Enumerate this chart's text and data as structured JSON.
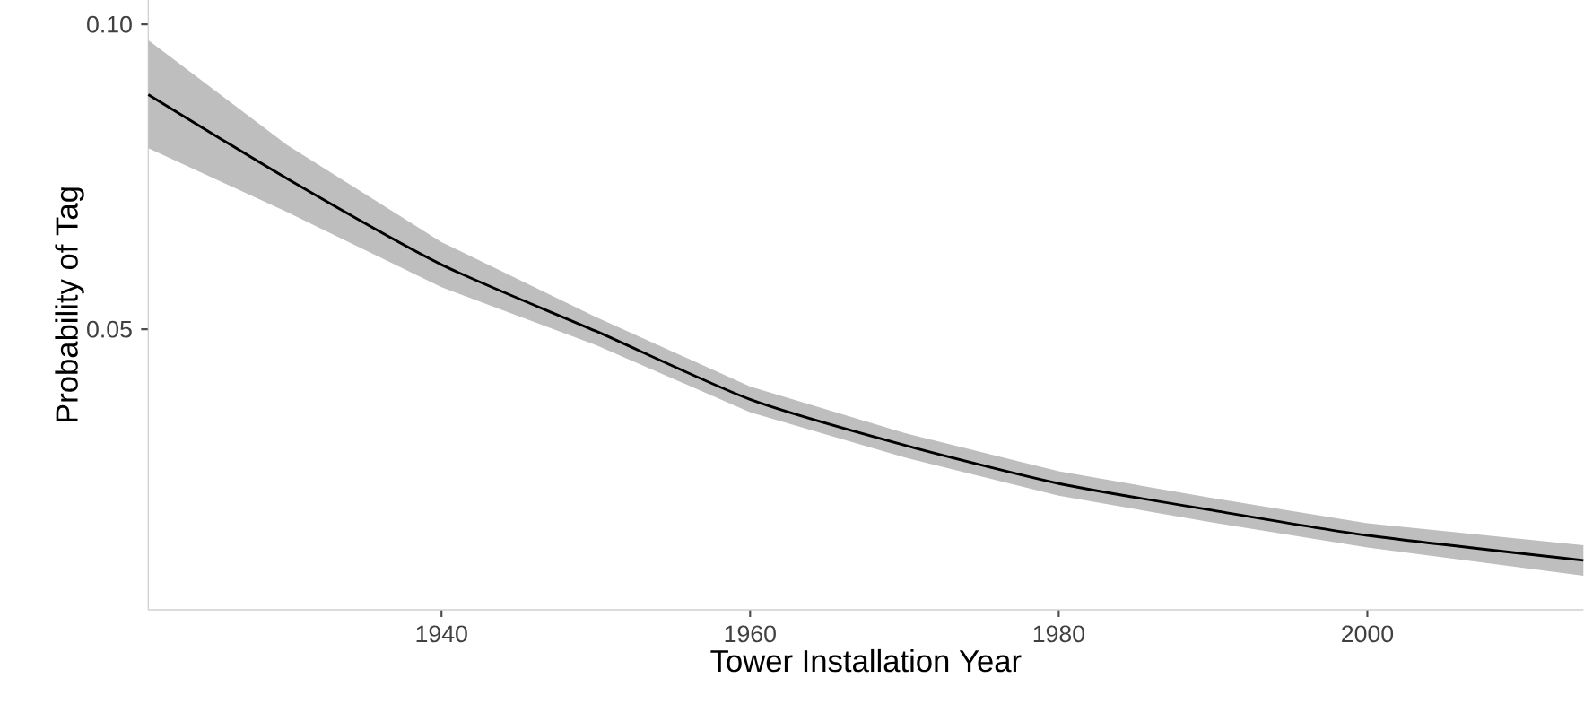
{
  "chart_data": {
    "type": "line",
    "xlabel": "Tower Installation Year",
    "ylabel": "Probability of Tag",
    "x": [
      1921,
      1930,
      1940,
      1950,
      1960,
      1970,
      1980,
      1990,
      2000,
      2014
    ],
    "series": [
      {
        "color": "#000000",
        "values": [
          0.0885,
          0.0747,
          0.0606,
          0.0497,
          0.0385,
          0.031,
          0.0247,
          0.0203,
          0.0162,
          0.0121
        ],
        "lower": [
          0.0797,
          0.0692,
          0.0569,
          0.0474,
          0.0364,
          0.029,
          0.0227,
          0.0183,
          0.0142,
          0.0096
        ],
        "upper": [
          0.0974,
          0.0802,
          0.0643,
          0.052,
          0.0406,
          0.033,
          0.0267,
          0.0223,
          0.0182,
          0.0146
        ]
      }
    ],
    "xticks": [
      1940,
      1960,
      1980,
      2000
    ],
    "yticks": [
      0.05,
      {
        "value": 0.1,
        "label": "0.10"
      }
    ],
    "xlim": [
      1921,
      2014
    ],
    "ylim": [
      0.004,
      0.104
    ],
    "grid": false,
    "marker": "none",
    "line_style": "solid"
  }
}
